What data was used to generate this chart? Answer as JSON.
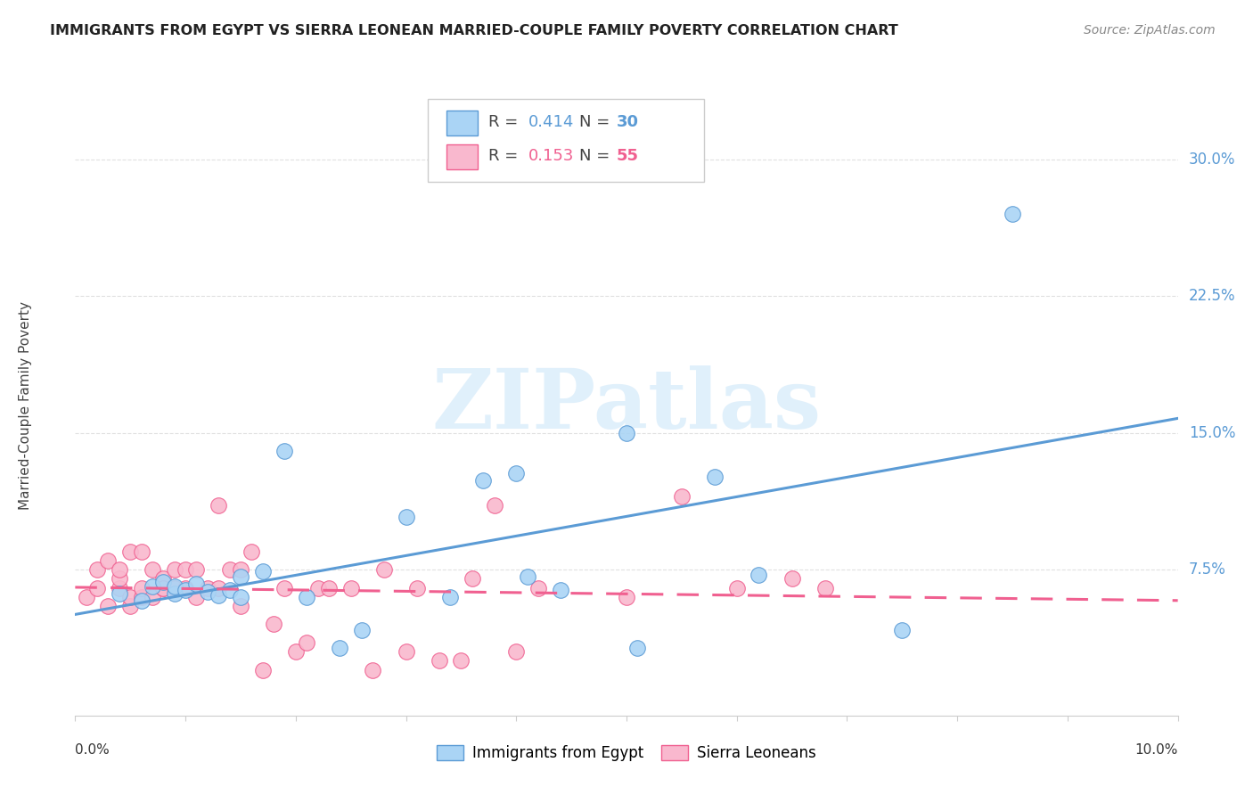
{
  "title": "IMMIGRANTS FROM EGYPT VS SIERRA LEONEAN MARRIED-COUPLE FAMILY POVERTY CORRELATION CHART",
  "source": "Source: ZipAtlas.com",
  "ylabel": "Married-Couple Family Poverty",
  "ytick_labels": [
    "30.0%",
    "22.5%",
    "15.0%",
    "7.5%"
  ],
  "ytick_values": [
    0.3,
    0.225,
    0.15,
    0.075
  ],
  "xlim": [
    0.0,
    0.1
  ],
  "ylim": [
    -0.005,
    0.335
  ],
  "legend_blue_r": "0.414",
  "legend_blue_n": "30",
  "legend_pink_r": "0.153",
  "legend_pink_n": "55",
  "blue_fill": "#AAD4F5",
  "pink_fill": "#F9B8CE",
  "blue_edge": "#5B9BD5",
  "pink_edge": "#F06090",
  "blue_line": "#5B9BD5",
  "pink_line": "#F06090",
  "grid_color": "#E0E0E0",
  "watermark": "ZIPatlas",
  "blue_scatter_x": [
    0.004,
    0.006,
    0.007,
    0.008,
    0.009,
    0.009,
    0.01,
    0.011,
    0.012,
    0.013,
    0.014,
    0.015,
    0.015,
    0.017,
    0.019,
    0.021,
    0.024,
    0.026,
    0.03,
    0.034,
    0.037,
    0.04,
    0.041,
    0.044,
    0.05,
    0.051,
    0.058,
    0.062,
    0.075,
    0.085
  ],
  "blue_scatter_y": [
    0.062,
    0.058,
    0.066,
    0.068,
    0.062,
    0.066,
    0.064,
    0.067,
    0.063,
    0.061,
    0.064,
    0.06,
    0.071,
    0.074,
    0.14,
    0.06,
    0.032,
    0.042,
    0.104,
    0.06,
    0.124,
    0.128,
    0.071,
    0.064,
    0.15,
    0.032,
    0.126,
    0.072,
    0.042,
    0.27
  ],
  "pink_scatter_x": [
    0.001,
    0.002,
    0.002,
    0.003,
    0.003,
    0.004,
    0.004,
    0.004,
    0.005,
    0.005,
    0.005,
    0.006,
    0.006,
    0.006,
    0.007,
    0.007,
    0.008,
    0.008,
    0.008,
    0.009,
    0.009,
    0.01,
    0.01,
    0.011,
    0.011,
    0.012,
    0.013,
    0.013,
    0.014,
    0.015,
    0.015,
    0.016,
    0.017,
    0.018,
    0.019,
    0.02,
    0.021,
    0.022,
    0.023,
    0.025,
    0.027,
    0.028,
    0.03,
    0.031,
    0.033,
    0.035,
    0.036,
    0.038,
    0.04,
    0.042,
    0.05,
    0.055,
    0.06,
    0.065,
    0.068
  ],
  "pink_scatter_y": [
    0.06,
    0.075,
    0.065,
    0.055,
    0.08,
    0.065,
    0.07,
    0.075,
    0.055,
    0.06,
    0.085,
    0.06,
    0.065,
    0.085,
    0.06,
    0.075,
    0.065,
    0.07,
    0.065,
    0.065,
    0.075,
    0.065,
    0.075,
    0.06,
    0.075,
    0.065,
    0.11,
    0.065,
    0.075,
    0.055,
    0.075,
    0.085,
    0.02,
    0.045,
    0.065,
    0.03,
    0.035,
    0.065,
    0.065,
    0.065,
    0.02,
    0.075,
    0.03,
    0.065,
    0.025,
    0.025,
    0.07,
    0.11,
    0.03,
    0.065,
    0.06,
    0.115,
    0.065,
    0.07,
    0.065
  ]
}
